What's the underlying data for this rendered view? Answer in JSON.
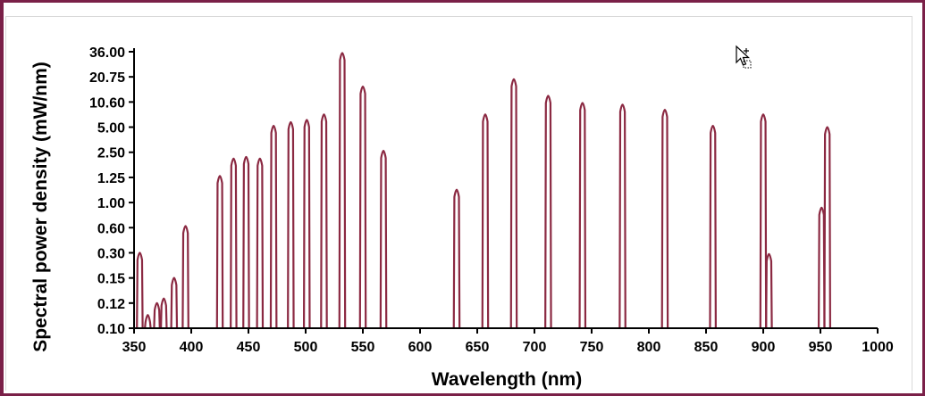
{
  "chart_data": {
    "type": "line",
    "title": "",
    "xlabel": "Wavelength (nm)",
    "ylabel": "Spectral power density (mW/nm)",
    "xlim": [
      350,
      1000
    ],
    "x_ticks": [
      350,
      400,
      450,
      500,
      550,
      600,
      650,
      700,
      750,
      800,
      850,
      900,
      950,
      1000
    ],
    "y_ticks": [
      "0.10",
      "0.12",
      "0.15",
      "0.30",
      "0.60",
      "1.00",
      "1.25",
      "2.50",
      "5.00",
      "10.60",
      "20.75",
      "36.00"
    ],
    "y_scale": "categorical-log",
    "grid": false,
    "legend": "none",
    "color": "#8b2942",
    "series": [
      {
        "name": "Spectral power density",
        "peaks": [
          {
            "wavelength": 355,
            "value": 0.3
          },
          {
            "wavelength": 362,
            "value": 0.11
          },
          {
            "wavelength": 370,
            "value": 0.12
          },
          {
            "wavelength": 376,
            "value": 0.125
          },
          {
            "wavelength": 385,
            "value": 0.15
          },
          {
            "wavelength": 395,
            "value": 0.62
          },
          {
            "wavelength": 425,
            "value": 1.3
          },
          {
            "wavelength": 437,
            "value": 2.1
          },
          {
            "wavelength": 448,
            "value": 2.2
          },
          {
            "wavelength": 460,
            "value": 2.1
          },
          {
            "wavelength": 472,
            "value": 5.2
          },
          {
            "wavelength": 487,
            "value": 5.8
          },
          {
            "wavelength": 501,
            "value": 6.2
          },
          {
            "wavelength": 516,
            "value": 7.3
          },
          {
            "wavelength": 532,
            "value": 35.0
          },
          {
            "wavelength": 550,
            "value": 16.0
          },
          {
            "wavelength": 568,
            "value": 2.6
          },
          {
            "wavelength": 632,
            "value": 1.12
          },
          {
            "wavelength": 657,
            "value": 7.3
          },
          {
            "wavelength": 682,
            "value": 19.5
          },
          {
            "wavelength": 712,
            "value": 12.5
          },
          {
            "wavelength": 742,
            "value": 10.3
          },
          {
            "wavelength": 777,
            "value": 9.8
          },
          {
            "wavelength": 814,
            "value": 8.4
          },
          {
            "wavelength": 856,
            "value": 5.2
          },
          {
            "wavelength": 900,
            "value": 7.3
          },
          {
            "wavelength": 905,
            "value": 0.29
          },
          {
            "wavelength": 951,
            "value": 0.9
          },
          {
            "wavelength": 956,
            "value": 5.0
          }
        ]
      }
    ]
  }
}
